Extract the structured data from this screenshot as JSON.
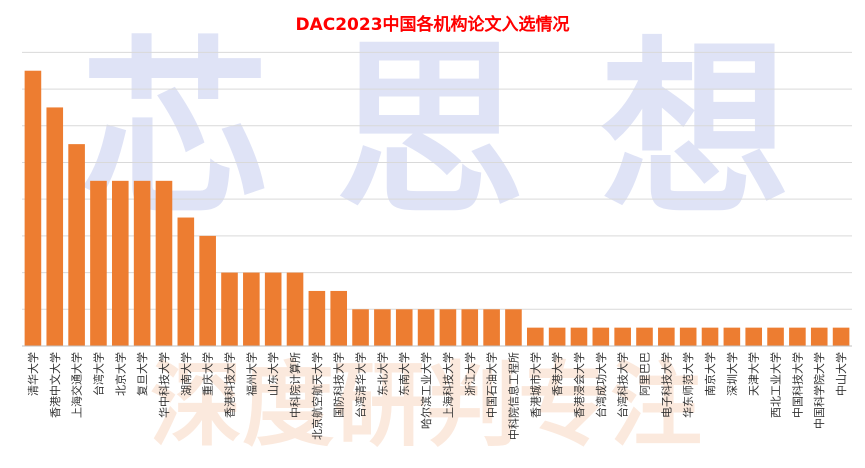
{
  "watermark": {
    "big_chars": [
      "芯",
      "思",
      "想"
    ],
    "bottom_text": "深度研判专注"
  },
  "chart_data": {
    "type": "bar",
    "title": "DAC2023中国各机构论文入选情况",
    "xlabel": "",
    "ylabel": "",
    "grid": true,
    "legend": "none",
    "ylim": [
      0,
      15
    ],
    "categories": [
      "清华大学",
      "香港中文大学",
      "上海交通大学",
      "台湾大学",
      "北京大学",
      "复旦大学",
      "华中科技大学",
      "湖南大学",
      "重庆大学",
      "香港科技大学",
      "福州大学",
      "山东大学",
      "中科院计算所",
      "北京航空航天大学",
      "国防科技大学",
      "台湾清华大学",
      "东北大学",
      "东南大学",
      "哈尔滨工业大学",
      "上海科技大学",
      "浙江大学",
      "中国石油大学",
      "中科院信息工程所",
      "香港城市大学",
      "香港大学",
      "香港浸会大学",
      "台湾成功大学",
      "台湾科技大学",
      "阿里巴巴",
      "电子科技大学",
      "华东师范大学",
      "南京大学",
      "深圳大学",
      "天津大学",
      "西北工业大学",
      "中国科技大学",
      "中国科学院大学",
      "中山大学"
    ],
    "values": [
      15,
      13,
      11,
      9,
      9,
      9,
      9,
      7,
      6,
      4,
      4,
      4,
      4,
      3,
      3,
      2,
      2,
      2,
      2,
      2,
      2,
      2,
      2,
      1,
      1,
      1,
      1,
      1,
      1,
      1,
      1,
      1,
      1,
      1,
      1,
      1,
      1,
      1
    ]
  },
  "colors": {
    "title": "#ff0000",
    "bar": "#ed7d31",
    "grid": "#d9d9d9",
    "axis": "#bfbfbf"
  }
}
